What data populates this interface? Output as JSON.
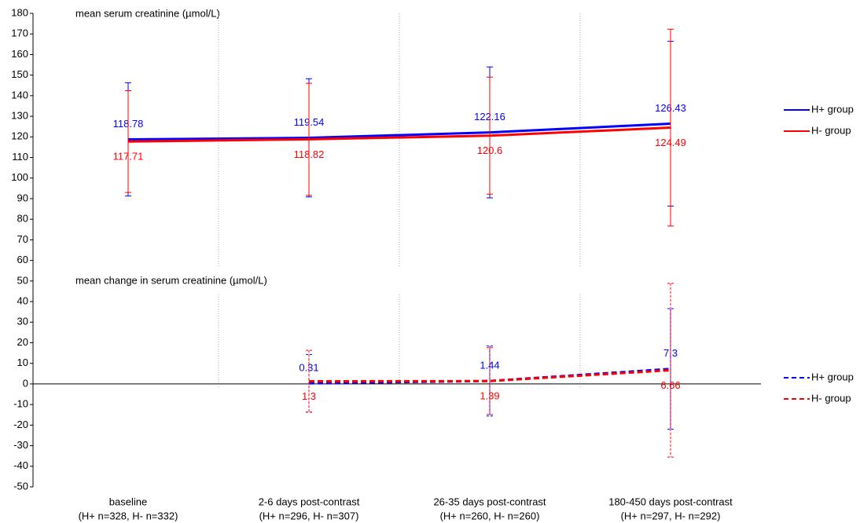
{
  "chart_data": {
    "type": "line",
    "annotations": [
      "mean serum creatinine (µmol/L)",
      "mean change in serum creatinine (µmol/L)"
    ],
    "categories": [
      "baseline",
      "2-6 days post-contrast",
      "26-35 days post-contrast",
      "180-450 days post-contrast"
    ],
    "sample_sizes": [
      "(H+ n=328, H- n=332)",
      "(H+ n=296, H- n=307)",
      "(H+ n=260, H- n=260)",
      "(H+ n=297, H- n=292)"
    ],
    "ylim": [
      -50,
      180
    ],
    "yticks": [
      -50,
      -40,
      -30,
      -20,
      -10,
      0,
      10,
      20,
      30,
      40,
      50,
      60,
      70,
      80,
      90,
      100,
      110,
      120,
      130,
      140,
      150,
      160,
      170,
      180
    ],
    "legend": "right",
    "series": [
      {
        "name": "H+ group",
        "color": "#0000ff",
        "dashed": false,
        "label_side": "above",
        "values": [
          118.78,
          119.54,
          122.16,
          126.43
        ],
        "errors": [
          27.5,
          28.7,
          31.8,
          40
        ]
      },
      {
        "name": "H- group",
        "color": "#ff0000",
        "dashed": false,
        "label_side": "below",
        "values": [
          117.71,
          118.82,
          120.6,
          124.49
        ],
        "errors": [
          24.7,
          27.2,
          28.4,
          47.8
        ]
      },
      {
        "name": "H+ group",
        "color": "#0000ff",
        "dashed": true,
        "label_side": "above",
        "values": [
          null,
          0.31,
          1.44,
          7.3
        ],
        "errors": [
          null,
          14,
          17,
          29.3
        ]
      },
      {
        "name": "H- group",
        "color": "#ff0000",
        "dashed": true,
        "label_side": "below",
        "values": [
          null,
          1.3,
          1.39,
          6.66
        ],
        "errors": [
          null,
          15,
          16.2,
          42.2
        ]
      }
    ]
  }
}
